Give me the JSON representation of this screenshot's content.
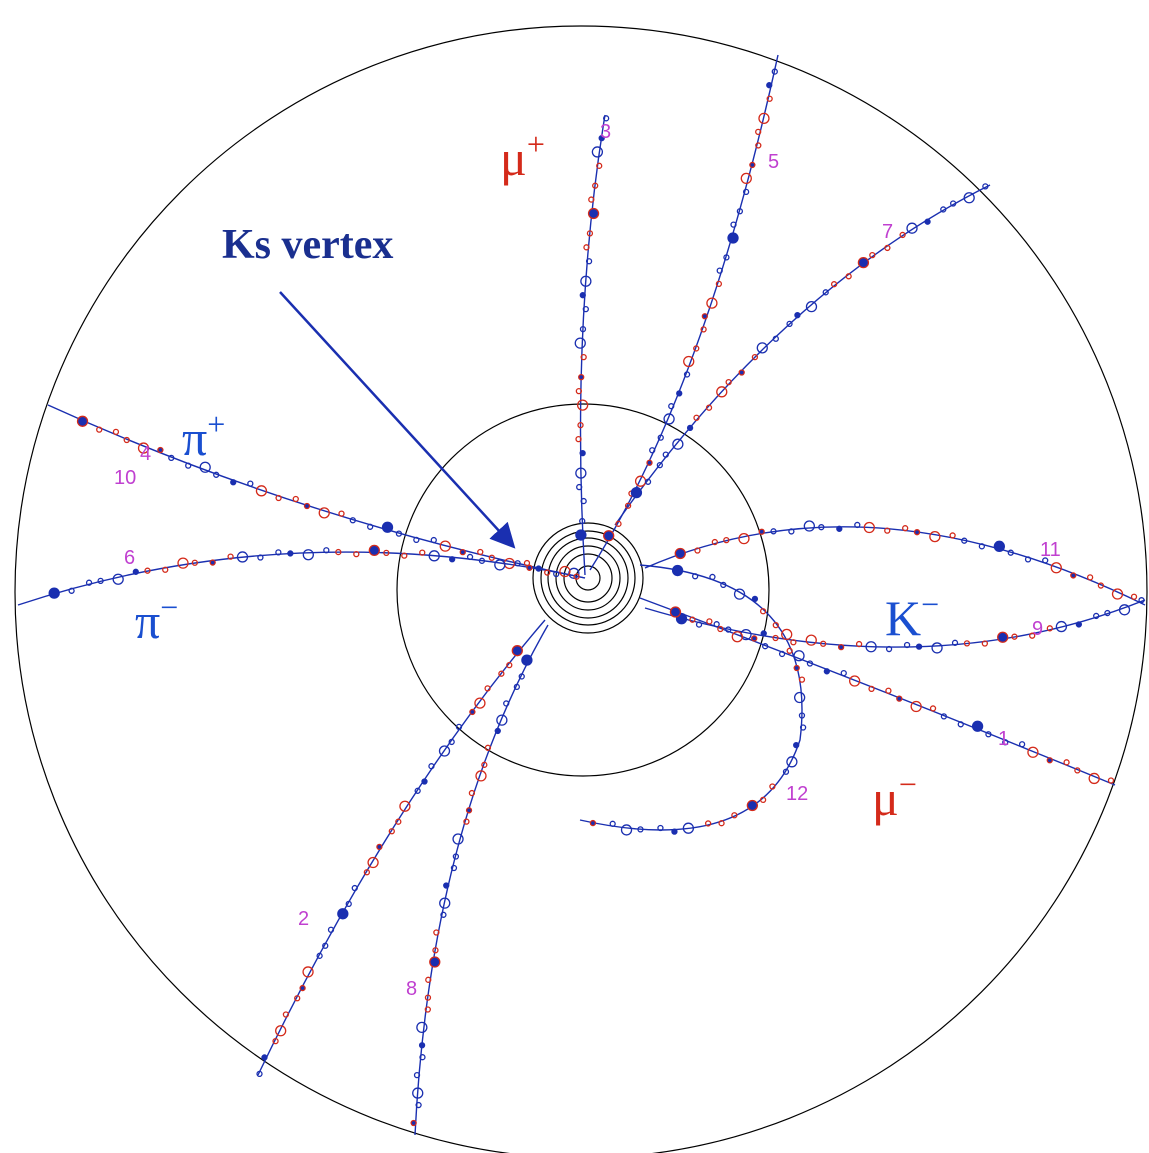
{
  "annotation": {
    "label": "Ks vertex"
  },
  "particles": [
    {
      "symbol": "μ",
      "charge": "+"
    },
    {
      "symbol": "π",
      "charge": "+"
    },
    {
      "symbol": "π",
      "charge": "−"
    },
    {
      "symbol": "K",
      "charge": "−"
    },
    {
      "symbol": "μ",
      "charge": "−"
    }
  ],
  "track_numbers": [
    "1",
    "2",
    "3",
    "4",
    "5",
    "6",
    "7",
    "8",
    "9",
    "10",
    "11",
    "12"
  ]
}
